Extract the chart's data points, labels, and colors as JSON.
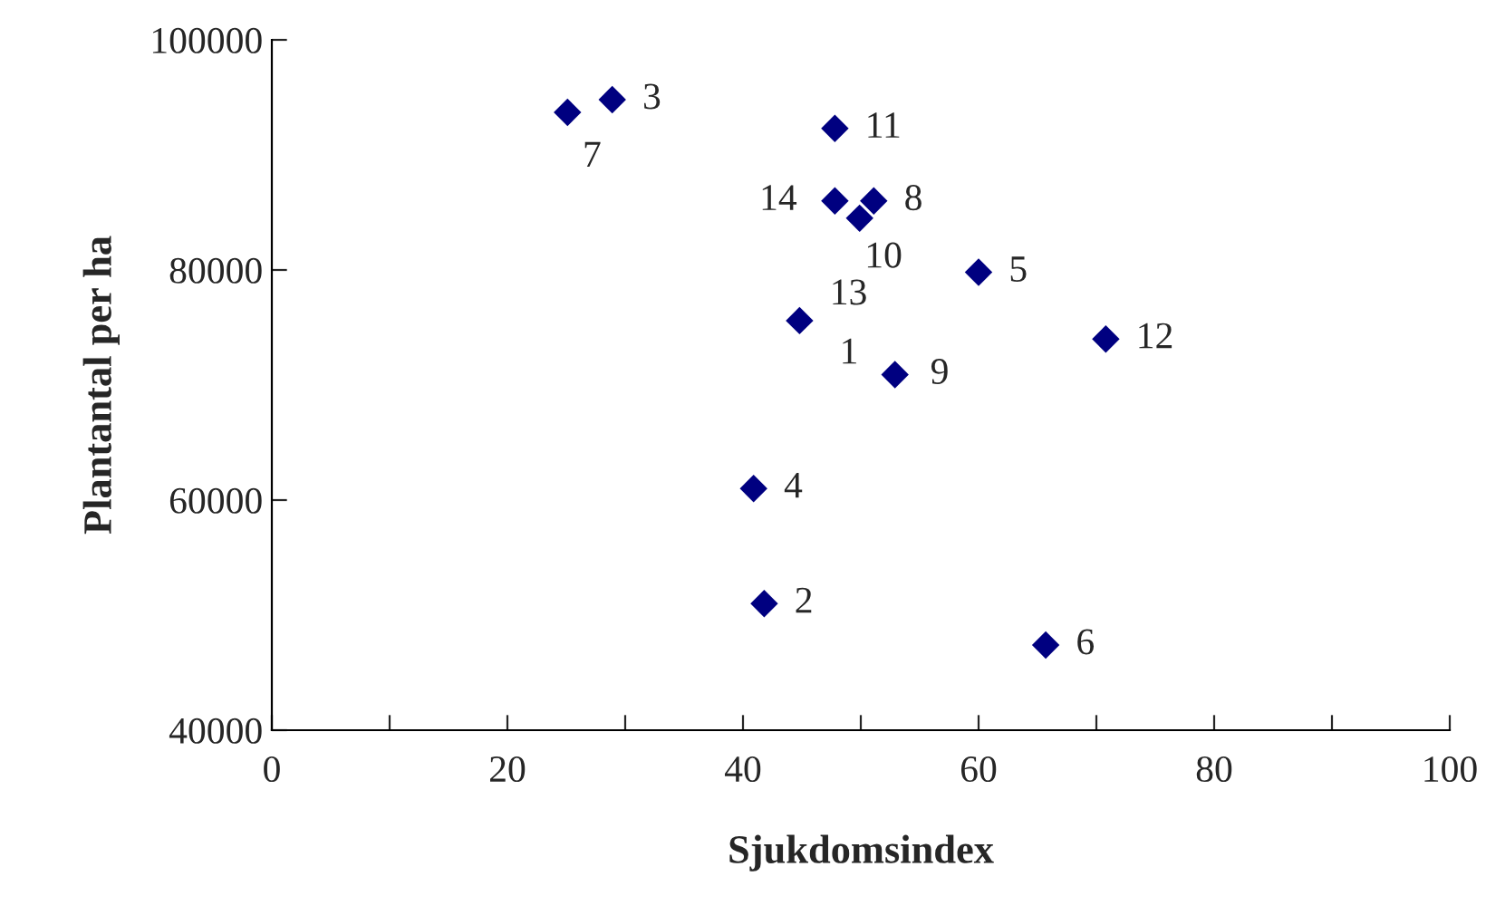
{
  "chart_data": {
    "type": "scatter",
    "xlabel": "Sjukdomsindex",
    "ylabel": "Plantantal per ha",
    "series": [
      {
        "color": "#000080",
        "x": [
          null,
          41.8,
          28.9,
          40.9,
          60,
          65.7,
          25.1,
          51.1,
          52.9,
          49.9,
          47.8,
          70.8,
          44.8,
          47.8
        ],
        "values": [
          null,
          51000,
          94800,
          61000,
          79800,
          47400,
          93700,
          86000,
          70900,
          84500,
          92300,
          74000,
          75600,
          86000
        ]
      }
    ],
    "annotations": [
      {
        "text": "1",
        "x": 52.9,
        "y": 70900
      },
      {
        "text": "2",
        "x": 41.8,
        "y": 51000
      },
      {
        "text": "3",
        "x": 28.9,
        "y": 94800
      },
      {
        "text": "4",
        "x": 40.9,
        "y": 61000
      },
      {
        "text": "5",
        "x": 60,
        "y": 79800
      },
      {
        "text": "6",
        "x": 65.7,
        "y": 47400
      },
      {
        "text": "7",
        "x": 25.1,
        "y": 93700
      },
      {
        "text": "8",
        "x": 51.1,
        "y": 86000
      },
      {
        "text": "9",
        "x": 52.9,
        "y": 70900
      },
      {
        "text": "10",
        "x": 49.9,
        "y": 84500
      },
      {
        "text": "11",
        "x": 47.8,
        "y": 92300
      },
      {
        "text": "12",
        "x": 70.8,
        "y": 74000
      },
      {
        "text": "13",
        "x": 44.8,
        "y": 75600
      },
      {
        "text": "14",
        "x": 47.8,
        "y": 86000
      }
    ],
    "xlim": [
      0,
      100
    ],
    "ylim": [
      40000,
      100000
    ],
    "xticks": [
      0,
      {
        "value": 10,
        "label": null
      },
      20,
      {
        "value": 30,
        "label": null
      },
      40,
      {
        "value": 50,
        "label": null
      },
      60,
      {
        "value": 70,
        "label": null
      },
      80,
      {
        "value": 90,
        "label": null
      },
      100
    ],
    "yticks": [
      40000,
      60000,
      80000,
      100000
    ],
    "marker": "diamond",
    "grid": false
  }
}
